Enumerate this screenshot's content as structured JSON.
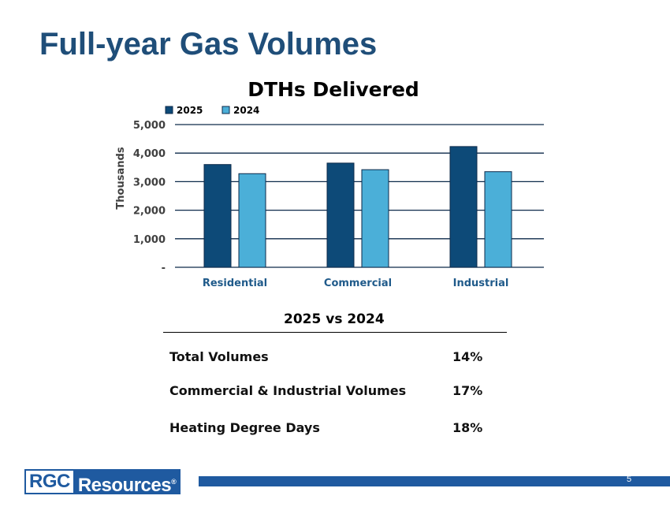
{
  "slide": {
    "title": "Full-year Gas Volumes",
    "page_number": "5"
  },
  "logo": {
    "part1": "RGC",
    "part2": "Resources",
    "mark": "®"
  },
  "colors": {
    "title": "#1f4e79",
    "series_2025": "#0d4a78",
    "series_2024": "#4bafd8",
    "footer_bar": "#1f5aa0"
  },
  "chart_data": {
    "type": "bar",
    "title": "DTHs Delivered",
    "xlabel": "",
    "ylabel": "Thousands",
    "ylim": [
      0,
      5000
    ],
    "yticks": [
      0,
      1000,
      2000,
      3000,
      4000,
      5000
    ],
    "ytick_labels": [
      "-",
      "1,000",
      "2,000",
      "3,000",
      "4,000",
      "5,000"
    ],
    "grid": true,
    "legend_position": "top-left",
    "categories": [
      "Residential",
      "Commercial",
      "Industrial"
    ],
    "series": [
      {
        "name": "2025",
        "values": [
          3600,
          3650,
          4230
        ]
      },
      {
        "name": "2024",
        "values": [
          3280,
          3420,
          3350
        ]
      }
    ]
  },
  "comparison": {
    "title": "2025 vs 2024",
    "rows": [
      {
        "label": "Total Volumes",
        "value": "14%"
      },
      {
        "label": "Commercial & Industrial Volumes",
        "value": "17%"
      },
      {
        "label": "Heating Degree Days",
        "value": "18%"
      }
    ]
  }
}
